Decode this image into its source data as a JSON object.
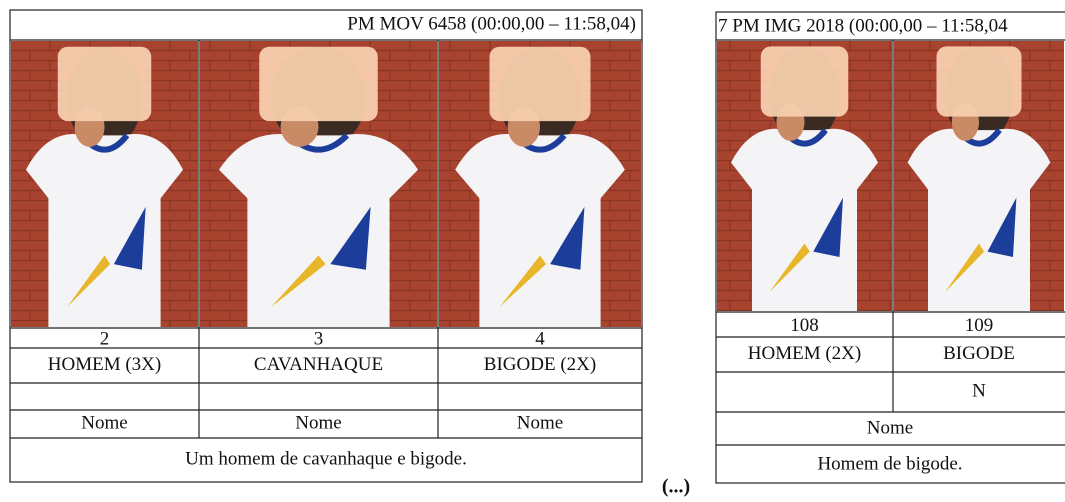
{
  "left": {
    "header": "PM MOV 6458 (00:00,00 – 11:58,04)",
    "columns": [
      {
        "number": "2",
        "gloss": "HOMEM (3X)",
        "label": "Nome"
      },
      {
        "number": "3",
        "gloss": "CAVANHAQUE",
        "label": "Nome"
      },
      {
        "number": "4",
        "gloss": "BIGODE (2X)",
        "label": "Nome"
      }
    ],
    "sentence": "Um homem de cavanhaque e bigode."
  },
  "ellipsis": "(...)",
  "right": {
    "header": "7 PM IMG 2018 (00:00,00 – 11:58,04",
    "columns": [
      {
        "number": "108",
        "gloss": "HOMEM (2X)"
      },
      {
        "number": "109",
        "gloss": "BIGODE",
        "mark": "N"
      }
    ],
    "label": "Nome",
    "sentence": "Homem de bigode."
  }
}
